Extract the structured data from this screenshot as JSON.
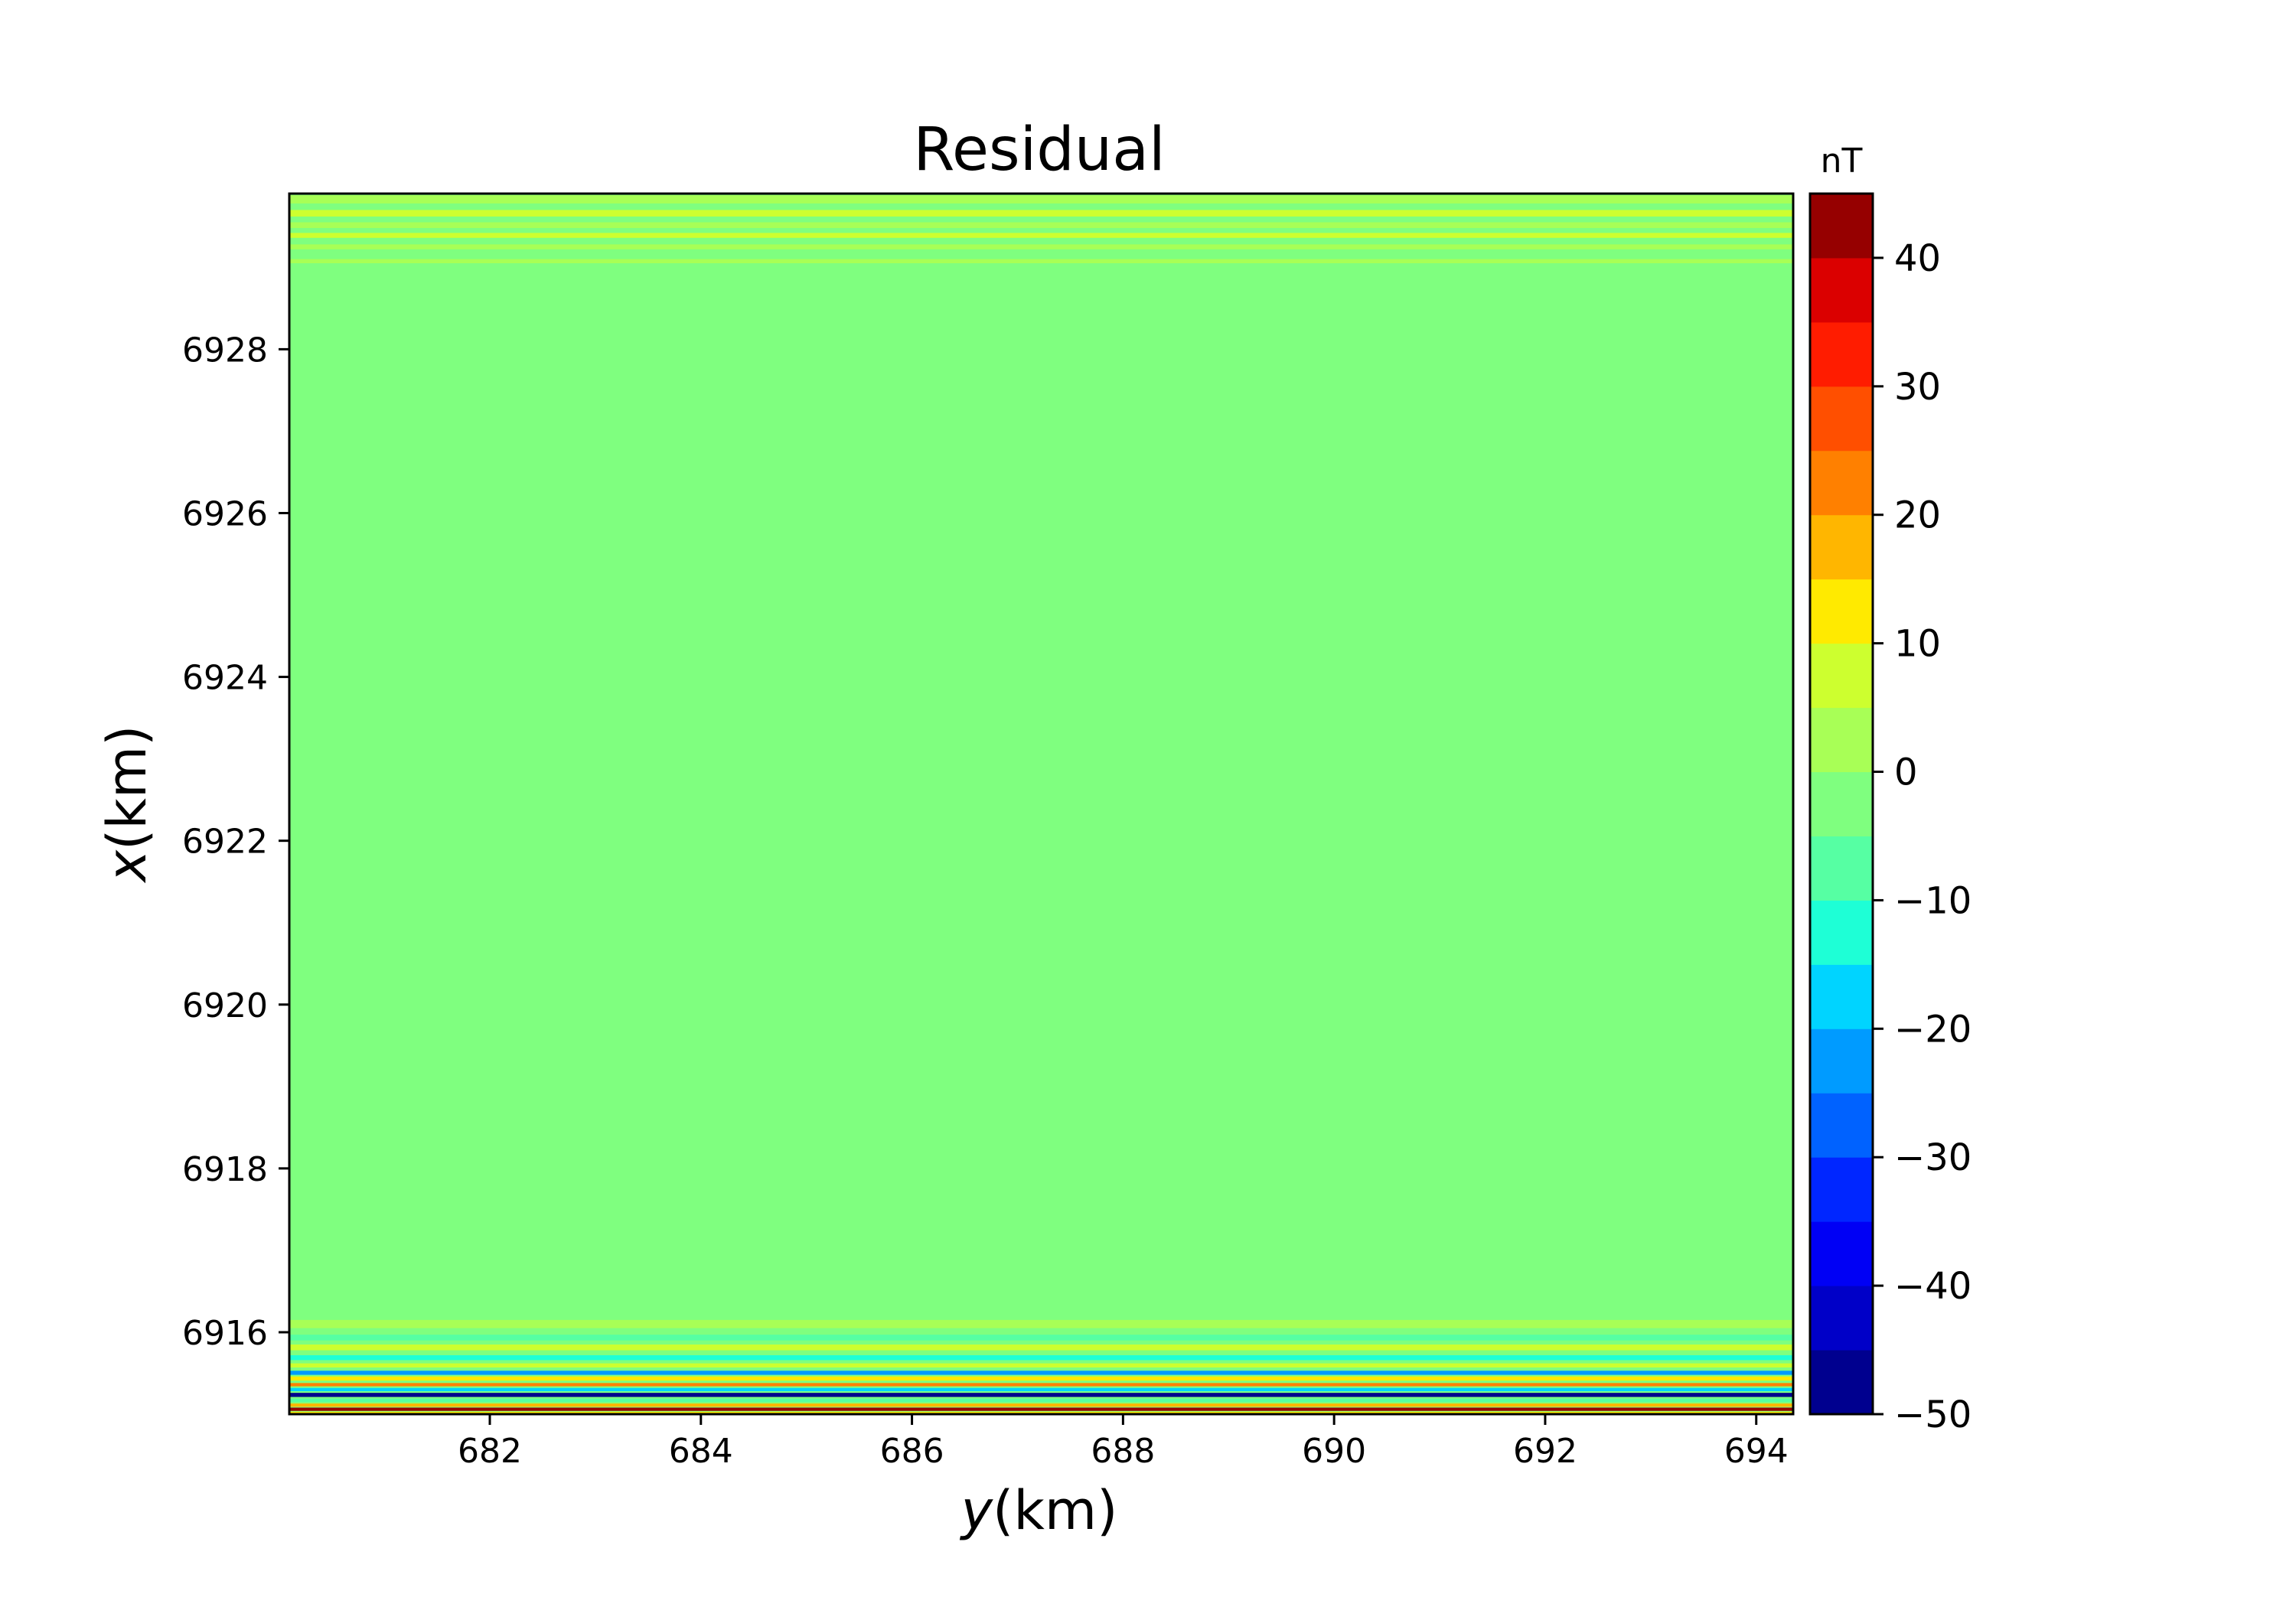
{
  "chart_data": {
    "type": "heatmap",
    "title": "Residual",
    "xlabel_italic": "y",
    "xlabel_unit": "(km)",
    "ylabel_italic": "x",
    "ylabel_unit": "(km)",
    "xlim": [
      680.1,
      694.35
    ],
    "ylim": [
      6915.0,
      6929.9
    ],
    "xticks": [
      682,
      684,
      686,
      688,
      690,
      692,
      694
    ],
    "xtick_labels": [
      "682",
      "684",
      "686",
      "688",
      "690",
      "692",
      "694"
    ],
    "yticks": [
      6916,
      6918,
      6920,
      6922,
      6924,
      6926,
      6928
    ],
    "ytick_labels": [
      "6916",
      "6918",
      "6920",
      "6922",
      "6924",
      "6926",
      "6928"
    ],
    "background_value": -2,
    "grid": false,
    "colorbar": {
      "unit_label": "nT",
      "levels": [
        -50,
        -45,
        -40,
        -35,
        -30,
        -25,
        -20,
        -15,
        -10,
        -5,
        0,
        5,
        10,
        15,
        20,
        25,
        30,
        35,
        40,
        45
      ],
      "colors": [
        "#00008f",
        "#0000c8",
        "#0000f5",
        "#0026ff",
        "#0062ff",
        "#009bff",
        "#00d4ff",
        "#1effd6",
        "#56ffa3",
        "#7fff7f",
        "#a8ff56",
        "#cdff2f",
        "#ffea00",
        "#ffb600",
        "#ff8000",
        "#ff4f00",
        "#ff1c00",
        "#db0000",
        "#960000"
      ],
      "ticks": [
        40,
        30,
        20,
        10,
        0,
        -10,
        -20,
        -30,
        -40,
        -50
      ],
      "tick_labels": [
        "40",
        "30",
        "20",
        "10",
        "0",
        "−10",
        "−20",
        "−30",
        "−40",
        "−50"
      ]
    },
    "bands": [
      {
        "x_from": 6929.88,
        "x_to": 6929.78,
        "value": 2
      },
      {
        "x_from": 6929.7,
        "x_to": 6929.62,
        "value": 6
      },
      {
        "x_from": 6929.55,
        "x_to": 6929.48,
        "value": 4
      },
      {
        "x_from": 6929.42,
        "x_to": 6929.36,
        "value": 6
      },
      {
        "x_from": 6929.28,
        "x_to": 6929.22,
        "value": 4
      },
      {
        "x_from": 6929.1,
        "x_to": 6929.05,
        "value": 3
      },
      {
        "x_from": 6916.15,
        "x_to": 6916.05,
        "value": 3
      },
      {
        "x_from": 6915.97,
        "x_to": 6915.9,
        "value": -7
      },
      {
        "x_from": 6915.85,
        "x_to": 6915.78,
        "value": 6
      },
      {
        "x_from": 6915.72,
        "x_to": 6915.66,
        "value": -12
      },
      {
        "x_from": 6915.62,
        "x_to": 6915.57,
        "value": 8
      },
      {
        "x_from": 6915.53,
        "x_to": 6915.48,
        "value": -25
      },
      {
        "x_from": 6915.46,
        "x_to": 6915.41,
        "value": 12
      },
      {
        "x_from": 6915.38,
        "x_to": 6915.34,
        "value": 22
      },
      {
        "x_from": 6915.32,
        "x_to": 6915.28,
        "value": -18
      },
      {
        "x_from": 6915.26,
        "x_to": 6915.21,
        "value": -48
      },
      {
        "x_from": 6915.19,
        "x_to": 6915.15,
        "value": -8
      },
      {
        "x_from": 6915.13,
        "x_to": 6915.09,
        "value": 15
      },
      {
        "x_from": 6915.08,
        "x_to": 6915.04,
        "value": 42
      },
      {
        "x_from": 6915.03,
        "x_to": 6915.0,
        "value": 10
      }
    ]
  }
}
